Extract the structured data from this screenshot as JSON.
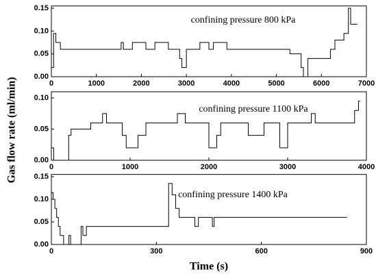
{
  "chart_data": [
    {
      "type": "line",
      "annotation": "confining pressure 800 kPa",
      "color": "#000000",
      "x": [
        0,
        50,
        50,
        100,
        100,
        200,
        200,
        1550,
        1550,
        1600,
        1600,
        1800,
        1800,
        2100,
        2100,
        2300,
        2300,
        2600,
        2600,
        2850,
        2850,
        2900,
        2900,
        3000,
        3000,
        3300,
        3300,
        3500,
        3500,
        3600,
        3600,
        3900,
        3900,
        5300,
        5300,
        5550,
        5550,
        5600,
        5600,
        5700,
        5700,
        6200,
        6200,
        6300,
        6300,
        6500,
        6500,
        6600,
        6600,
        6650,
        6650,
        6800
      ],
      "values": [
        0.02,
        0.02,
        0.095,
        0.095,
        0.075,
        0.075,
        0.06,
        0.06,
        0.075,
        0.075,
        0.06,
        0.06,
        0.075,
        0.075,
        0.06,
        0.06,
        0.075,
        0.075,
        0.06,
        0.06,
        0.04,
        0.04,
        0.02,
        0.02,
        0.06,
        0.06,
        0.075,
        0.075,
        0.06,
        0.06,
        0.075,
        0.075,
        0.06,
        0.06,
        0.05,
        0.05,
        0.02,
        0.02,
        0,
        0,
        0.04,
        0.04,
        0.06,
        0.06,
        0.08,
        0.08,
        0.095,
        0.095,
        0.15,
        0.15,
        0.115,
        0.115
      ],
      "xlim": [
        0,
        7000
      ],
      "xticks": [
        0,
        1000,
        2000,
        3000,
        4000,
        5000,
        6000,
        7000
      ],
      "ylim": [
        0,
        0.155
      ],
      "yticks": [
        {
          "value": 0,
          "label": "0.00"
        },
        {
          "value": 0.05,
          "label": "0.05"
        },
        {
          "value": 0.1,
          "label": "0.10"
        },
        {
          "value": 0.15,
          "label": "0.15"
        }
      ]
    },
    {
      "type": "line",
      "annotation": "confining pressure 1100 kPa",
      "color": "#000000",
      "ylabel": "Gas flow rate (ml/min)",
      "x": [
        0,
        30,
        30,
        220,
        220,
        250,
        250,
        500,
        500,
        650,
        650,
        700,
        700,
        900,
        900,
        950,
        950,
        1100,
        1100,
        1200,
        1200,
        1600,
        1600,
        1700,
        1700,
        2000,
        2000,
        2100,
        2100,
        2150,
        2150,
        2500,
        2500,
        2700,
        2700,
        2900,
        2900,
        3000,
        3000,
        3300,
        3300,
        3350,
        3350,
        3850,
        3850,
        3900,
        3900,
        3920
      ],
      "values": [
        0.02,
        0.02,
        0,
        0,
        0.04,
        0.04,
        0.05,
        0.05,
        0.06,
        0.06,
        0.075,
        0.075,
        0.06,
        0.06,
        0.04,
        0.04,
        0.02,
        0.02,
        0.04,
        0.04,
        0.06,
        0.06,
        0.075,
        0.075,
        0.06,
        0.06,
        0.02,
        0.02,
        0.04,
        0.04,
        0.06,
        0.06,
        0.04,
        0.04,
        0.06,
        0.06,
        0.02,
        0.02,
        0.06,
        0.06,
        0.075,
        0.075,
        0.06,
        0.06,
        0.08,
        0.08,
        0.095,
        0.095
      ],
      "xlim": [
        0,
        4000
      ],
      "xticks": [
        0,
        1000,
        2000,
        3000,
        4000
      ],
      "ylim": [
        0,
        0.11
      ],
      "yticks": [
        {
          "value": 0,
          "label": "0.00"
        },
        {
          "value": 0.05,
          "label": "0.05"
        },
        {
          "value": 0.1,
          "label": "0.10"
        }
      ]
    },
    {
      "type": "line",
      "annotation": "confining pressure 1400 kPa",
      "color": "#000000",
      "xlabel": "Time (s)",
      "x": [
        0,
        5,
        5,
        10,
        10,
        15,
        15,
        20,
        20,
        25,
        25,
        35,
        35,
        50,
        50,
        55,
        55,
        85,
        85,
        90,
        90,
        100,
        100,
        335,
        335,
        345,
        345,
        355,
        355,
        365,
        365,
        410,
        410,
        420,
        420,
        460,
        460,
        465,
        465,
        845
      ],
      "values": [
        0.115,
        0.115,
        0.1,
        0.1,
        0.08,
        0.08,
        0.06,
        0.06,
        0.04,
        0.04,
        0.02,
        0.02,
        0,
        0,
        0.02,
        0.02,
        0,
        0,
        0.04,
        0.04,
        0.02,
        0.02,
        0.04,
        0.04,
        0.135,
        0.135,
        0.11,
        0.11,
        0.08,
        0.08,
        0.06,
        0.06,
        0.04,
        0.04,
        0.06,
        0.06,
        0.04,
        0.04,
        0.06,
        0.06
      ],
      "xlim": [
        0,
        900
      ],
      "xticks": [
        0,
        300,
        600,
        900
      ],
      "ylim": [
        0,
        0.155
      ],
      "yticks": [
        {
          "value": 0,
          "label": "0.00"
        },
        {
          "value": 0.05,
          "label": "0.05"
        },
        {
          "value": 0.1,
          "label": "0.10"
        },
        {
          "value": 0.15,
          "label": "0.15"
        }
      ]
    }
  ]
}
